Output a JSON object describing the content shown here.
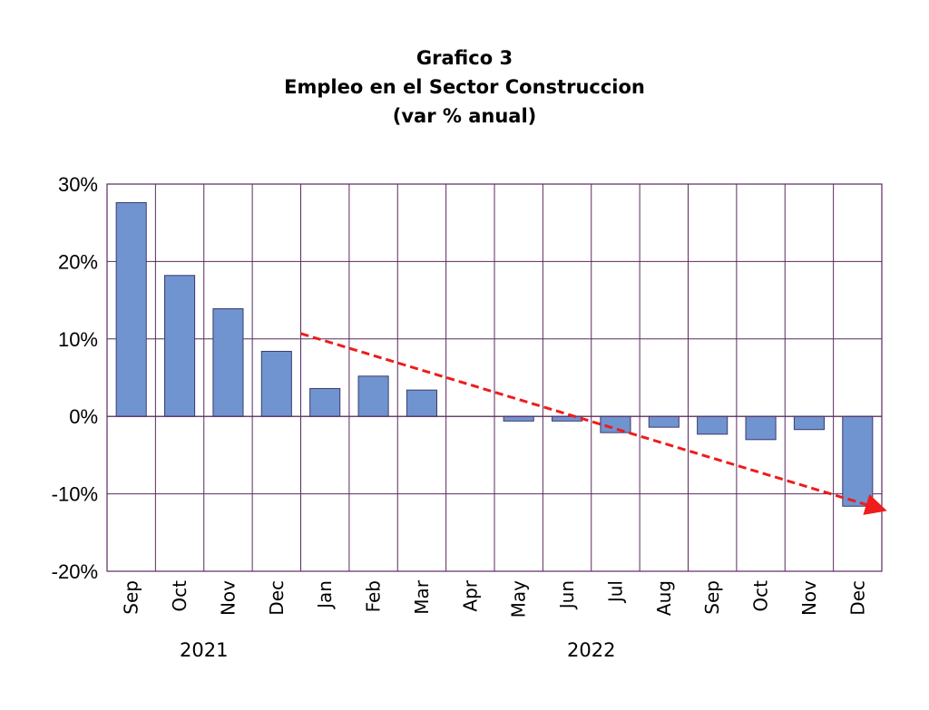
{
  "chart_data": {
    "type": "bar",
    "title_lines": [
      "Grafico 3",
      "Empleo en el Sector Construccion",
      "(var % anual)"
    ],
    "categories": [
      "Sep",
      "Oct",
      "Nov",
      "Dec",
      "Jan",
      "Feb",
      "Mar",
      "Apr",
      "May",
      "Jun",
      "Jul",
      "Aug",
      "Sep",
      "Oct",
      "Nov",
      "Dec"
    ],
    "values": [
      27.6,
      18.2,
      13.9,
      8.4,
      3.6,
      5.2,
      3.4,
      null,
      -0.6,
      -0.6,
      -2.1,
      -1.4,
      -2.3,
      -3.0,
      -1.7,
      -11.6
    ],
    "year_groups": [
      {
        "label": "2021",
        "start": 0,
        "end": 3
      },
      {
        "label": "2022",
        "start": 4,
        "end": 15
      }
    ],
    "y_ticks": [
      -20,
      -10,
      0,
      10,
      20,
      30
    ],
    "y_tick_labels": [
      "-20%",
      "-10%",
      "0%",
      "10%",
      "20%",
      "30%"
    ],
    "ylim": [
      -20,
      30
    ],
    "grid": true,
    "trend_arrow": {
      "from": {
        "category_index": 4,
        "value": 10.7
      },
      "to": {
        "category_index": 15,
        "value": -12.0
      }
    },
    "colors": {
      "bar": "#7094cf",
      "bar_stroke": "#3c3a6e",
      "grid": "#5b2a5e",
      "trend": "#ee1c1c"
    }
  }
}
